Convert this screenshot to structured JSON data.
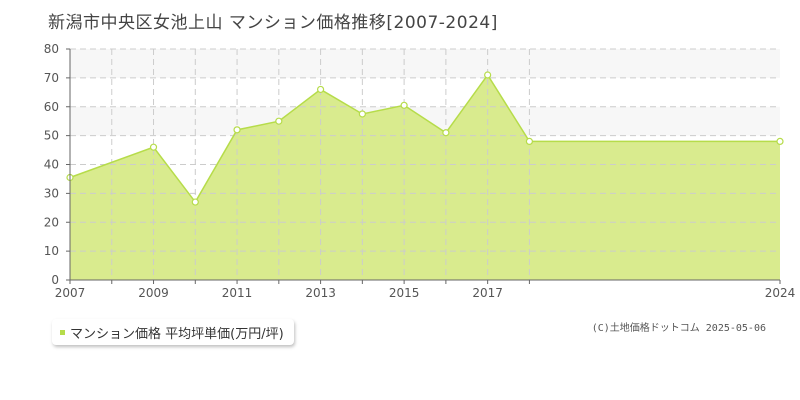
{
  "chart_data": {
    "type": "area",
    "title": "新潟市中央区女池上山 マンション価格推移[2007-2024]",
    "xlabel": "",
    "ylabel": "",
    "x": [
      2007,
      2008,
      2009,
      2010,
      2011,
      2012,
      2013,
      2014,
      2015,
      2016,
      2017,
      2018,
      2024
    ],
    "xlim": [
      2007,
      2024
    ],
    "x_tick_labels": [
      "2007",
      "2009",
      "2011",
      "2013",
      "2015",
      "2017",
      "2024"
    ],
    "ylim": [
      0,
      80
    ],
    "y_ticks": [
      0,
      10,
      20,
      30,
      40,
      50,
      60,
      70,
      80
    ],
    "grid": true,
    "legend_position": "bottom-left",
    "series": [
      {
        "name": "マンション価格 平均坪単価(万円/坪)",
        "values": [
          35.5,
          46,
          27,
          52,
          55,
          66,
          57.5,
          60.5,
          51,
          71,
          48,
          48,
          48
        ],
        "x": [
          2007,
          2009,
          2010,
          2011,
          2012,
          2013,
          2014,
          2015,
          2016,
          2017,
          2018,
          2019,
          2024
        ]
      }
    ],
    "colors": {
      "fill": "#d9eb8e",
      "line": "#b6dc4a",
      "marker_fill": "#ffffff",
      "grid": "#cccccc",
      "band": "#f7f7f7",
      "legend_marker": "#b6dc4a"
    }
  },
  "legend": {
    "label": "マンション価格 平均坪単価(万円/坪)"
  },
  "copyright": "(C)土地価格ドットコム 2025-05-06"
}
